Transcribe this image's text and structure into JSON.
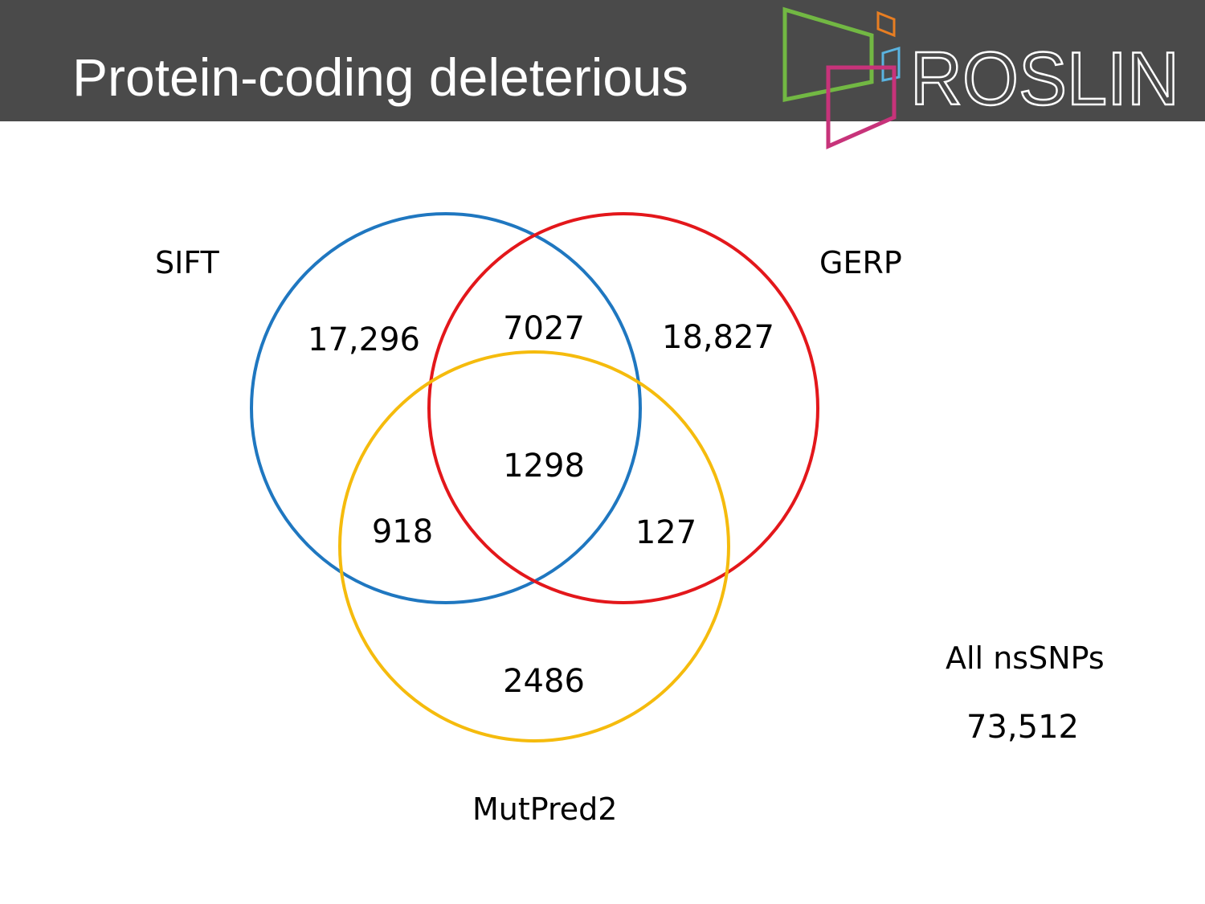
{
  "header": {
    "title": "Protein-coding deleterious",
    "logo": {
      "text": "ROSLIN",
      "colors": {
        "green": "#72b843",
        "orange": "#e87e22",
        "blue": "#5ab3e0",
        "magenta": "#c7337a"
      }
    }
  },
  "venn": {
    "sets": [
      {
        "name": "SIFT",
        "color": "#1f77c0"
      },
      {
        "name": "GERP",
        "color": "#e3171b"
      },
      {
        "name": "MutPred2",
        "color": "#f5bb0d"
      }
    ],
    "regions": {
      "sift_only": "17,296",
      "gerp_only": "18,827",
      "mutpred2_only": "2486",
      "sift_gerp": "7027",
      "sift_mutpred2": "918",
      "gerp_mutpred2": "127",
      "all_three": "1298"
    }
  },
  "total": {
    "label": "All nsSNPs",
    "value": "73,512"
  }
}
